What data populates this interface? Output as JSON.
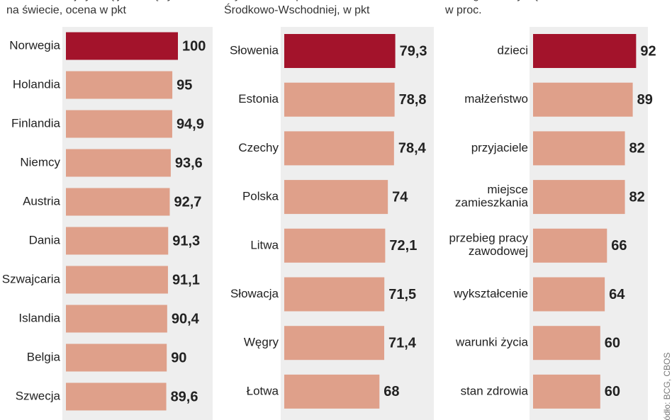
{
  "chart_data": [
    {
      "type": "bar",
      "subtitle": [
        "Państwa z najwyższą jakością życia",
        "na świecie, ocena w pkt"
      ],
      "categories": [
        "Norwegia",
        "Holandia",
        "Finlandia",
        "Niemcy",
        "Austria",
        "Dania",
        "Szwajcaria",
        "Islandia",
        "Belgia",
        "Szwecja"
      ],
      "values": [
        100,
        95,
        94.9,
        93.6,
        92.7,
        91.3,
        91.1,
        90.4,
        90,
        89.6
      ],
      "value_labels": [
        "100",
        "95",
        "94,9",
        "93,6",
        "92,7",
        "91,3",
        "91,1",
        "90,4",
        "90",
        "89,6"
      ],
      "colors": [
        "#a3132b",
        "#dfa08a",
        "#dfa08a",
        "#dfa08a",
        "#dfa08a",
        "#dfa08a",
        "#dfa08a",
        "#dfa08a",
        "#dfa08a",
        "#dfa08a"
      ],
      "xlim": [
        0,
        100
      ]
    },
    {
      "type": "bar",
      "subtitle": [
        "Wyniki w Europie",
        "Środkowo-Wschodniej, w pkt"
      ],
      "categories": [
        "Słowenia",
        "Estonia",
        "Czechy",
        "Polska",
        "Litwa",
        "Słowacja",
        "Węgry",
        "Łotwa"
      ],
      "values": [
        79.3,
        78.8,
        78.4,
        74,
        72.1,
        71.5,
        71.4,
        68
      ],
      "value_labels": [
        "79,3",
        "78,8",
        "78,4",
        "74",
        "72,1",
        "71,5",
        "71,4",
        "68"
      ],
      "colors": [
        "#a3132b",
        "#dfa08a",
        "#dfa08a",
        "#dfa08a",
        "#dfa08a",
        "#dfa08a",
        "#dfa08a",
        "#dfa08a"
      ],
      "xlim": [
        0,
        80
      ]
    },
    {
      "type": "bar",
      "subtitle": [
        "Z czego Polacy są zadowoleni,",
        "w proc."
      ],
      "categories": [
        "dzieci",
        "małżeństwo",
        "przyjaciele",
        "miejsce\nzamieszkania",
        "przebieg pracy\nzawodowej",
        "wykształcenie",
        "warunki życia",
        "stan zdrowia"
      ],
      "values": [
        92,
        89,
        82,
        82,
        66,
        64,
        60,
        60
      ],
      "colors": [
        "#a3132b",
        "#dfa08a",
        "#dfa08a",
        "#dfa08a",
        "#dfa08a",
        "#dfa08a",
        "#dfa08a",
        "#dfa08a"
      ],
      "xlim": [
        0,
        100
      ],
      "source": "Źródło: BCG, CBOS"
    }
  ]
}
